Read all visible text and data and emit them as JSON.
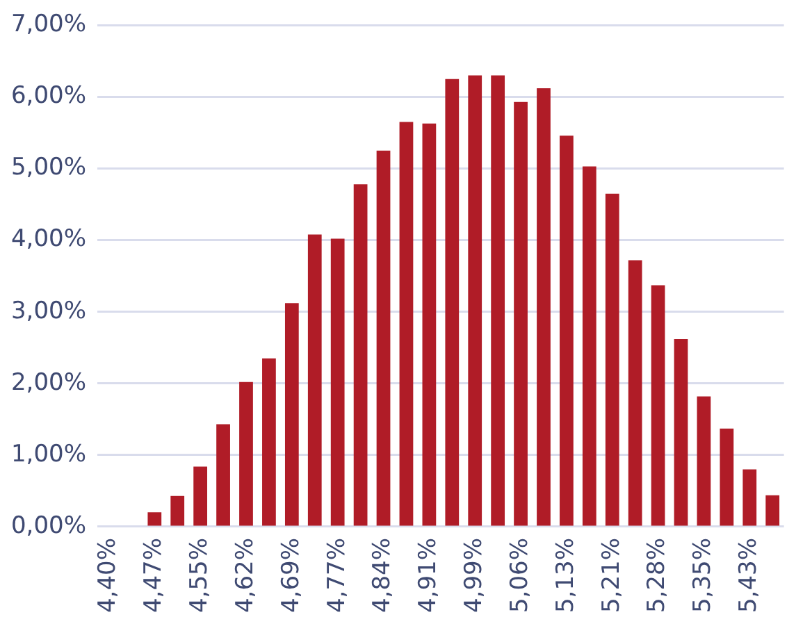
{
  "chart_data": {
    "type": "bar",
    "categories": [
      "4,40%",
      null,
      "4,47%",
      null,
      "4,55%",
      null,
      "4,62%",
      null,
      "4,69%",
      null,
      "4,77%",
      null,
      "4,84%",
      null,
      "4,91%",
      null,
      "4,99%",
      null,
      "5,06%",
      null,
      "5,13%",
      null,
      "5,21%",
      null,
      "5,28%",
      null,
      "5,35%",
      null,
      "5,43%",
      null
    ],
    "values": [
      0,
      0,
      0.2,
      0.43,
      0.84,
      1.43,
      2.02,
      2.35,
      3.12,
      4.08,
      4.02,
      4.78,
      5.25,
      5.65,
      5.63,
      6.25,
      6.3,
      6.3,
      5.93,
      6.12,
      5.46,
      5.03,
      4.65,
      3.72,
      3.37,
      2.62,
      1.82,
      1.37,
      0.8,
      0.44
    ],
    "color": "#b01c27",
    "ylim": [
      0,
      7
    ],
    "yticks": [
      {
        "value": 0,
        "label": "0,00%"
      },
      {
        "value": 1,
        "label": "1,00%"
      },
      {
        "value": 2,
        "label": "2,00%"
      },
      {
        "value": 3,
        "label": "3,00%"
      },
      {
        "value": 4,
        "label": "4,00%"
      },
      {
        "value": 5,
        "label": "5,00%"
      },
      {
        "value": 6,
        "label": "6,00%"
      },
      {
        "value": 7,
        "label": "7,00%"
      }
    ],
    "grid": "y",
    "legend": false
  }
}
